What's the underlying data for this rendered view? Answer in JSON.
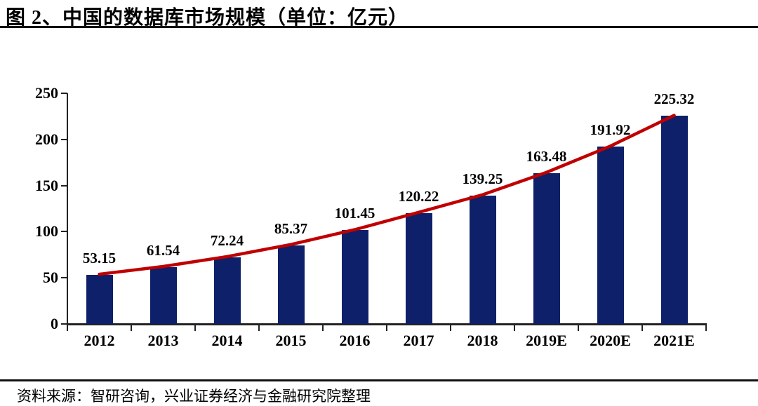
{
  "header": {
    "title": "图 2、中国的数据库市场规模（单位：亿元）"
  },
  "chart_data": {
    "type": "bar",
    "overlay": "line",
    "title": "中国的数据库市场规模",
    "unit": "亿元",
    "categories": [
      "2012",
      "2013",
      "2014",
      "2015",
      "2016",
      "2017",
      "2018",
      "2019E",
      "2020E",
      "2021E"
    ],
    "values": [
      53.15,
      61.54,
      72.24,
      85.37,
      101.45,
      120.22,
      139.25,
      163.48,
      191.92,
      225.32
    ],
    "data_labels": [
      "53.15",
      "61.54",
      "72.24",
      "85.37",
      "101.45",
      "120.22",
      "139.25",
      "163.48",
      "191.92",
      "225.32"
    ],
    "line_values": [
      53.15,
      61.54,
      72.24,
      85.37,
      101.45,
      120.22,
      139.25,
      163.48,
      191.92,
      225.32
    ],
    "xlabel": "",
    "ylabel": "",
    "ylim": [
      0,
      250
    ],
    "yticks": [
      0,
      50,
      100,
      150,
      200,
      250
    ],
    "grid": false,
    "legend": "none"
  },
  "footer": {
    "source": "资料来源：智研咨询，兴业证券经济与金融研究院整理"
  },
  "colors": {
    "bar": "#0d2069",
    "line": "#c00000",
    "text": "#000000",
    "axis": "#222222"
  }
}
